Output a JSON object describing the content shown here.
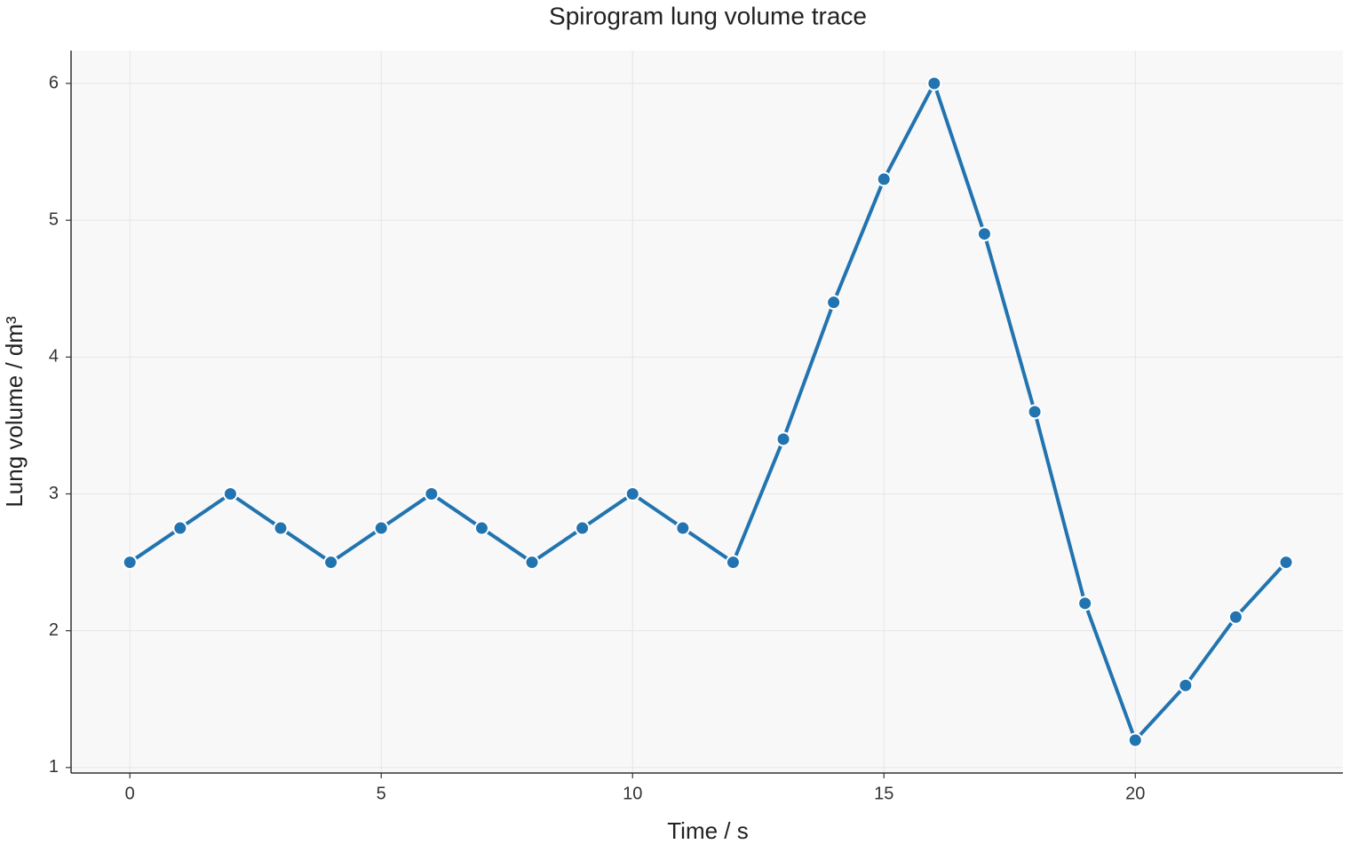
{
  "chart_data": {
    "type": "line",
    "title": "Spirogram lung volume trace",
    "x_label": "Time / s",
    "y_label": "Lung volume / dm³",
    "x": [
      0,
      1,
      2,
      3,
      4,
      5,
      6,
      7,
      8,
      9,
      10,
      11,
      12,
      13,
      14,
      15,
      16,
      17,
      18,
      19,
      20,
      21,
      22,
      23
    ],
    "values": [
      2.5,
      2.75,
      3,
      2.75,
      2.5,
      2.75,
      3,
      2.75,
      2.5,
      2.75,
      3,
      2.75,
      2.5,
      3.4,
      4.4,
      5.3,
      6.0,
      4.9,
      3.6,
      2.2,
      1.2,
      1.6,
      2.1,
      2.5
    ],
    "color": "#2274b0",
    "xlim": [
      -1.17,
      24.13
    ],
    "ylim": [
      0.96,
      6.24
    ],
    "xticks": [
      0,
      5,
      10,
      15,
      20
    ],
    "yticks": [
      1,
      2,
      3,
      4,
      5,
      6
    ],
    "grid": true
  }
}
